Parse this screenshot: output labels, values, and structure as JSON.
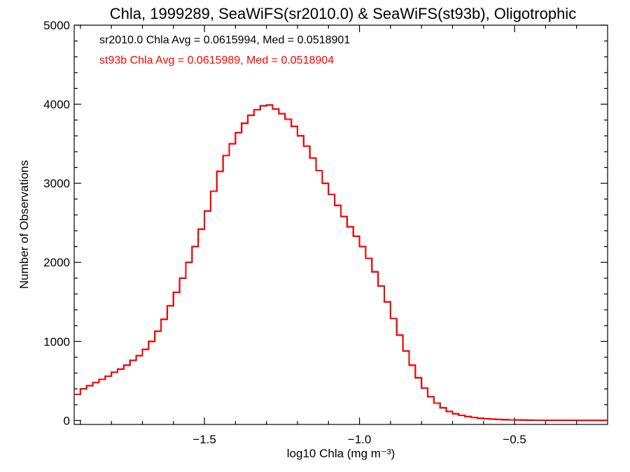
{
  "chart_data": {
    "type": "line",
    "step": true,
    "title": "Chla, 1999289, SeaWiFS(sr2010.0) & SeaWiFS(st93b), Oligotrophic",
    "xlabel": "log10 Chla (mg m⁻³)",
    "ylabel": "Number of Observations",
    "xlim": [
      -1.92,
      -0.2
    ],
    "ylim": [
      -50,
      5000
    ],
    "xticks": [
      -1.5,
      -1.0,
      -0.5
    ],
    "xtick_labels": [
      "−1.5",
      "−1.0",
      "−0.5"
    ],
    "yticks": [
      0,
      1000,
      2000,
      3000,
      4000,
      5000
    ],
    "ytick_labels": [
      "0",
      "1000",
      "2000",
      "3000",
      "4000",
      "5000"
    ],
    "annotations": [
      {
        "text": "sr2010.0 Chla Avg = 0.0615994, Med = 0.0518901",
        "color": "#000000"
      },
      {
        "text": "st93b Chla Avg = 0.0615989, Med = 0.0518904",
        "color": "#ff0000"
      }
    ],
    "series": [
      {
        "color": "#000000",
        "x": [
          -1.92,
          -1.9,
          -1.88,
          -1.86,
          -1.84,
          -1.82,
          -1.8,
          -1.78,
          -1.76,
          -1.74,
          -1.72,
          -1.7,
          -1.68,
          -1.66,
          -1.64,
          -1.62,
          -1.6,
          -1.58,
          -1.56,
          -1.54,
          -1.52,
          -1.5,
          -1.48,
          -1.46,
          -1.44,
          -1.42,
          -1.4,
          -1.38,
          -1.36,
          -1.34,
          -1.32,
          -1.3,
          -1.28,
          -1.26,
          -1.24,
          -1.22,
          -1.2,
          -1.18,
          -1.16,
          -1.14,
          -1.12,
          -1.1,
          -1.08,
          -1.06,
          -1.04,
          -1.02,
          -1.0,
          -0.98,
          -0.96,
          -0.94,
          -0.92,
          -0.9,
          -0.88,
          -0.86,
          -0.84,
          -0.82,
          -0.8,
          -0.78,
          -0.76,
          -0.74,
          -0.72,
          -0.7,
          -0.68,
          -0.66,
          -0.64,
          -0.62,
          -0.6,
          -0.58,
          -0.56,
          -0.54,
          -0.52,
          -0.5,
          -0.48,
          -0.46,
          -0.44,
          -0.42,
          -0.4,
          -0.35,
          -0.3,
          -0.25,
          -0.2
        ],
        "y": [
          330,
          400,
          440,
          480,
          520,
          560,
          610,
          650,
          700,
          760,
          820,
          900,
          1000,
          1130,
          1280,
          1450,
          1620,
          1800,
          2000,
          2200,
          2420,
          2650,
          2900,
          3150,
          3350,
          3500,
          3640,
          3760,
          3860,
          3930,
          3980,
          3990,
          3940,
          3880,
          3810,
          3720,
          3600,
          3470,
          3320,
          3160,
          3000,
          2860,
          2720,
          2580,
          2450,
          2330,
          2200,
          2050,
          1880,
          1700,
          1500,
          1290,
          1080,
          880,
          700,
          540,
          410,
          300,
          220,
          160,
          115,
          85,
          65,
          50,
          38,
          28,
          22,
          17,
          13,
          10,
          8,
          6,
          5,
          4,
          3,
          3,
          2,
          2,
          1,
          1,
          1
        ]
      },
      {
        "color": "#ff0000",
        "x": [
          -1.92,
          -1.9,
          -1.88,
          -1.86,
          -1.84,
          -1.82,
          -1.8,
          -1.78,
          -1.76,
          -1.74,
          -1.72,
          -1.7,
          -1.68,
          -1.66,
          -1.64,
          -1.62,
          -1.6,
          -1.58,
          -1.56,
          -1.54,
          -1.52,
          -1.5,
          -1.48,
          -1.46,
          -1.44,
          -1.42,
          -1.4,
          -1.38,
          -1.36,
          -1.34,
          -1.32,
          -1.3,
          -1.28,
          -1.26,
          -1.24,
          -1.22,
          -1.2,
          -1.18,
          -1.16,
          -1.14,
          -1.12,
          -1.1,
          -1.08,
          -1.06,
          -1.04,
          -1.02,
          -1.0,
          -0.98,
          -0.96,
          -0.94,
          -0.92,
          -0.9,
          -0.88,
          -0.86,
          -0.84,
          -0.82,
          -0.8,
          -0.78,
          -0.76,
          -0.74,
          -0.72,
          -0.7,
          -0.68,
          -0.66,
          -0.64,
          -0.62,
          -0.6,
          -0.58,
          -0.56,
          -0.54,
          -0.52,
          -0.5,
          -0.48,
          -0.46,
          -0.44,
          -0.42,
          -0.4,
          -0.35,
          -0.3,
          -0.25,
          -0.2
        ],
        "y": [
          330,
          400,
          440,
          480,
          520,
          560,
          610,
          650,
          700,
          760,
          820,
          900,
          1000,
          1130,
          1280,
          1450,
          1620,
          1800,
          2000,
          2200,
          2420,
          2650,
          2900,
          3150,
          3350,
          3500,
          3640,
          3760,
          3860,
          3930,
          3980,
          3990,
          3940,
          3880,
          3810,
          3720,
          3600,
          3470,
          3320,
          3160,
          3000,
          2860,
          2720,
          2580,
          2450,
          2330,
          2200,
          2050,
          1880,
          1700,
          1500,
          1290,
          1080,
          880,
          700,
          540,
          410,
          300,
          220,
          160,
          115,
          85,
          65,
          50,
          38,
          28,
          22,
          17,
          13,
          10,
          8,
          6,
          5,
          4,
          3,
          3,
          2,
          2,
          1,
          1,
          1
        ]
      }
    ]
  }
}
